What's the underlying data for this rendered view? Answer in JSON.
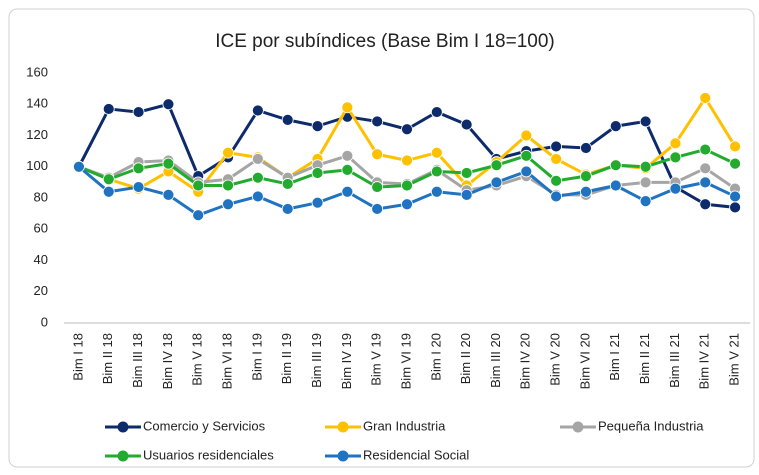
{
  "chart_data": {
    "type": "line",
    "title": "ICE por subíndices (Base Bim I 18=100)",
    "categories": [
      "Bim I 18",
      "Bim II 18",
      "Bim III 18",
      "Bim IV 18",
      "Bim V 18",
      "Bim VI 18",
      "Bim I 19",
      "Bim II 19",
      "Bim III 19",
      "Bim IV 19",
      "Bim V 19",
      "Bim VI 19",
      "Bim I 20",
      "Bim II 20",
      "Bim III 20",
      "Bim IV 20",
      "Bim V 20",
      "Bim VI 20",
      "Bim I 21",
      "Bim II 21",
      "Bim III 21",
      "Bim IV 21",
      "Bim V 21"
    ],
    "series": [
      {
        "name": "Comercio y Servicios",
        "color": "#0d2b6b",
        "values": [
          100,
          137,
          135,
          140,
          94,
          106,
          136,
          130,
          126,
          132,
          129,
          124,
          135,
          127,
          105,
          110,
          113,
          112,
          126,
          129,
          87,
          76,
          74
        ]
      },
      {
        "name": "Gran Industria",
        "color": "#ffc000",
        "values": [
          100,
          92,
          86,
          97,
          84,
          109,
          106,
          93,
          105,
          138,
          108,
          104,
          109,
          88,
          103,
          120,
          105,
          95,
          101,
          99,
          115,
          144,
          113
        ]
      },
      {
        "name": "Pequeña Industria",
        "color": "#a5a5a5",
        "values": [
          100,
          93,
          103,
          104,
          90,
          92,
          105,
          93,
          101,
          107,
          90,
          89,
          98,
          85,
          88,
          94,
          82,
          82,
          88,
          90,
          90,
          99,
          86
        ]
      },
      {
        "name": "Usuarios residenciales",
        "color": "#22ab2e",
        "values": [
          100,
          92,
          99,
          102,
          88,
          88,
          93,
          89,
          96,
          98,
          87,
          88,
          97,
          96,
          101,
          107,
          91,
          94,
          101,
          100,
          106,
          111,
          102
        ]
      },
      {
        "name": "Residencial Social",
        "color": "#1f73c1",
        "values": [
          100,
          84,
          87,
          82,
          69,
          76,
          81,
          73,
          77,
          84,
          73,
          76,
          84,
          82,
          90,
          97,
          81,
          84,
          88,
          78,
          86,
          90,
          81
        ]
      }
    ],
    "ylim": [
      0,
      160
    ],
    "yticks": [
      0,
      20,
      40,
      60,
      80,
      100,
      120,
      140,
      160
    ],
    "grid": false,
    "legend": "bottom"
  }
}
